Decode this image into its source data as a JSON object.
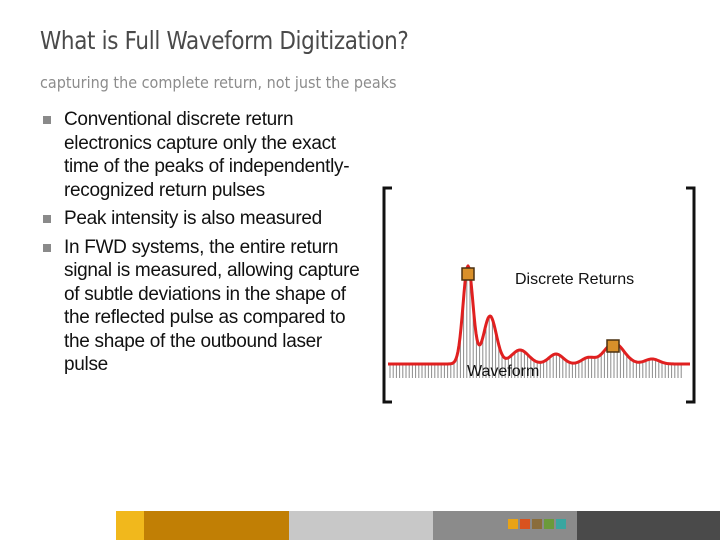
{
  "slide": {
    "title": "What is Full Waveform Digitization?",
    "subtitle": "capturing the complete return, not just the peaks",
    "bullets": [
      "Conventional discrete return electronics capture only the exact time of the peaks of independently-recognized return pulses",
      "Peak intensity is also measured",
      "In FWD systems, the entire return signal is measured, allowing capture of subtle deviations in the shape of the reflected pulse as compared to the shape of the outbound laser pulse"
    ]
  },
  "figure": {
    "discrete_label": "Discrete Returns",
    "waveform_label": "Waveform"
  },
  "colors": {
    "waveform": "#e02020",
    "samples": "#8a8a8a",
    "marker_fill": "#d9902a",
    "marker_stroke": "#4a3010",
    "footer": [
      "#f1b81c",
      "#c17f05",
      "#c8c8c8",
      "#8b8b8b",
      "#4a4a4a"
    ],
    "footer_squares": [
      "#e8a317",
      "#d9531e",
      "#8a6d3b",
      "#6b9a3a",
      "#3aa6a0"
    ]
  }
}
